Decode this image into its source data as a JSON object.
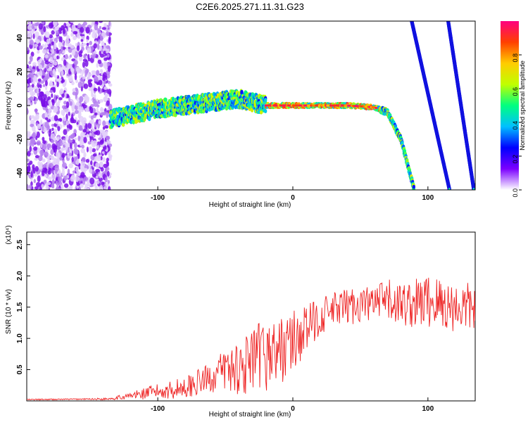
{
  "title": "C2E6.2025.271.11.31.G23",
  "chart_data": [
    {
      "type": "heatmap",
      "xlabel": "Height of straight line (km)",
      "ylabel": "Frequency (Hz)",
      "xlim": [
        -197,
        135
      ],
      "ylim": [
        -50,
        50
      ],
      "x_ticks": [
        -100,
        0,
        100
      ],
      "x_tick_labels": [
        "-100",
        "0",
        "100"
      ],
      "y_ticks": [
        -40,
        -20,
        0,
        20,
        40
      ],
      "y_tick_labels": [
        "-40",
        "-20",
        "0",
        "20",
        "40"
      ],
      "colorbar": {
        "label": "Normalized spectral amplitude",
        "range": [
          0,
          1
        ],
        "ticks": [
          0.0,
          0.2,
          0.4,
          0.6,
          0.8
        ],
        "tick_labels": [
          "0.0",
          "0.2",
          "0.4",
          "0.6",
          "0.8"
        ],
        "colormap": [
          "#ffffff",
          "#7b00ff",
          "#0000ff",
          "#00c0ff",
          "#00ff80",
          "#c0ff00",
          "#ffcc00",
          "#ff4000",
          "#ff0080"
        ]
      },
      "features": [
        {
          "name": "noise region",
          "x_range": [
            -197,
            -135
          ],
          "freq_range": [
            -50,
            50
          ],
          "amplitude": 0.1
        },
        {
          "name": "main echo",
          "points": [
            [
              -135,
              -8
            ],
            [
              -100,
              -2
            ],
            [
              -60,
              2
            ],
            [
              -40,
              4
            ],
            [
              -20,
              0
            ],
            [
              0,
              0
            ],
            [
              40,
              0
            ],
            [
              60,
              -1
            ],
            [
              70,
              -4
            ],
            [
              80,
              -20
            ],
            [
              90,
              -50
            ]
          ],
          "amplitude": 0.9
        },
        {
          "name": "streak 1",
          "points": [
            [
              88,
              50
            ],
            [
              102,
              0
            ],
            [
              116,
              -50
            ]
          ],
          "amplitude": 0.35
        },
        {
          "name": "streak 2",
          "points": [
            [
              115,
              50
            ],
            [
              125,
              0
            ],
            [
              134,
              -50
            ]
          ],
          "amplitude": 0.35
        }
      ]
    },
    {
      "type": "line",
      "xlabel": "Height of straight line (km)",
      "ylabel": "SNR (10 * v/v)",
      "y_multiplier_label": "(x10⁴)",
      "xlim": [
        -197,
        135
      ],
      "ylim": [
        0,
        2.7
      ],
      "x_ticks": [
        -100,
        0,
        100
      ],
      "x_tick_labels": [
        "-100",
        "0",
        "100"
      ],
      "y_ticks": [
        0.5,
        1.0,
        1.5,
        2.0,
        2.5
      ],
      "y_tick_labels": [
        "0.5",
        "1.0",
        "1.5",
        "2.0",
        "2.5"
      ],
      "color": "#ee2222",
      "series": [
        {
          "x": [
            -197,
            -150,
            -140,
            -130,
            -120,
            -110,
            -100,
            -90,
            -80,
            -70,
            -60,
            -50,
            -40,
            -30,
            -20,
            -10,
            0,
            10,
            20,
            30,
            40,
            50,
            60,
            70,
            80,
            90,
            100,
            110,
            120,
            130,
            135
          ],
          "mean": [
            0.02,
            0.03,
            0.03,
            0.05,
            0.08,
            0.12,
            0.15,
            0.18,
            0.22,
            0.3,
            0.38,
            0.5,
            0.55,
            0.6,
            0.75,
            0.8,
            0.95,
            1.15,
            1.35,
            1.45,
            1.5,
            1.55,
            1.55,
            1.6,
            1.55,
            1.55,
            1.6,
            1.55,
            1.5,
            1.5,
            1.5
          ],
          "spread": [
            0.01,
            0.01,
            0.02,
            0.03,
            0.06,
            0.1,
            0.12,
            0.15,
            0.18,
            0.2,
            0.25,
            0.35,
            0.45,
            0.55,
            0.6,
            0.55,
            0.5,
            0.4,
            0.3,
            0.3,
            0.3,
            0.3,
            0.3,
            0.35,
            0.35,
            0.4,
            0.45,
            0.45,
            0.4,
            0.4,
            0.4
          ]
        }
      ]
    }
  ]
}
